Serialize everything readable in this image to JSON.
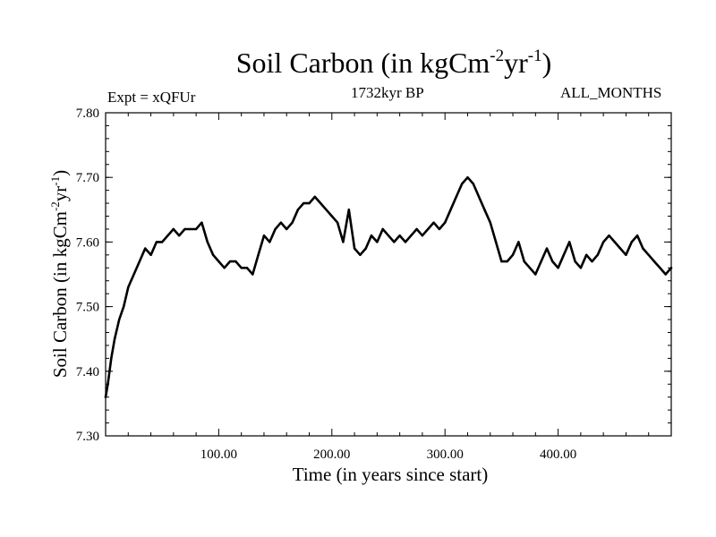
{
  "header": {
    "title_main": "Soil Carbon (in kgCm",
    "title_sup1": "-2",
    "title_mid": "yr",
    "title_sup2": "-1",
    "title_end": ")",
    "experiment": "Expt = xQFUr",
    "period": "1732kyr BP",
    "months": "ALL_MONTHS"
  },
  "chart_data": {
    "type": "line",
    "title": "Soil Carbon (in kgCm-2yr-1)",
    "xlabel": "Time (in years since start)",
    "ylabel": "Soil Carbon (in kgCm-2yr-1)",
    "xlim": [
      0,
      500
    ],
    "ylim": [
      7.3,
      7.8
    ],
    "x_ticks": [
      100,
      200,
      300,
      400
    ],
    "x_tick_labels": [
      "100.00",
      "200.00",
      "300.00",
      "400.00"
    ],
    "y_ticks": [
      7.3,
      7.4,
      7.5,
      7.6,
      7.7,
      7.8
    ],
    "y_tick_labels": [
      "7.30",
      "7.40",
      "7.50",
      "7.60",
      "7.70",
      "7.80"
    ],
    "series": [
      {
        "name": "Soil Carbon",
        "x": [
          0,
          2,
          5,
          8,
          12,
          16,
          20,
          25,
          30,
          35,
          40,
          45,
          50,
          55,
          60,
          65,
          70,
          75,
          80,
          85,
          90,
          95,
          100,
          105,
          110,
          115,
          120,
          125,
          130,
          135,
          140,
          145,
          150,
          155,
          160,
          165,
          170,
          175,
          180,
          185,
          190,
          195,
          200,
          205,
          210,
          215,
          220,
          225,
          230,
          235,
          240,
          245,
          250,
          255,
          260,
          265,
          270,
          275,
          280,
          285,
          290,
          295,
          300,
          305,
          310,
          315,
          320,
          325,
          330,
          335,
          340,
          345,
          350,
          355,
          360,
          365,
          370,
          375,
          380,
          385,
          390,
          395,
          400,
          405,
          410,
          415,
          420,
          425,
          430,
          435,
          440,
          445,
          450,
          455,
          460,
          465,
          470,
          475,
          480,
          485,
          490,
          495,
          500
        ],
        "values": [
          7.36,
          7.38,
          7.42,
          7.45,
          7.48,
          7.5,
          7.53,
          7.55,
          7.57,
          7.59,
          7.58,
          7.6,
          7.6,
          7.61,
          7.62,
          7.61,
          7.62,
          7.62,
          7.62,
          7.63,
          7.6,
          7.58,
          7.57,
          7.56,
          7.57,
          7.57,
          7.56,
          7.56,
          7.55,
          7.58,
          7.61,
          7.6,
          7.62,
          7.63,
          7.62,
          7.63,
          7.65,
          7.66,
          7.66,
          7.67,
          7.66,
          7.65,
          7.64,
          7.63,
          7.6,
          7.65,
          7.59,
          7.58,
          7.59,
          7.61,
          7.6,
          7.62,
          7.61,
          7.6,
          7.61,
          7.6,
          7.61,
          7.62,
          7.61,
          7.62,
          7.63,
          7.62,
          7.63,
          7.65,
          7.67,
          7.69,
          7.7,
          7.69,
          7.67,
          7.65,
          7.63,
          7.6,
          7.57,
          7.57,
          7.58,
          7.6,
          7.57,
          7.56,
          7.55,
          7.57,
          7.59,
          7.57,
          7.56,
          7.58,
          7.6,
          7.57,
          7.56,
          7.58,
          7.57,
          7.58,
          7.6,
          7.61,
          7.6,
          7.59,
          7.58,
          7.6,
          7.61,
          7.59,
          7.58,
          7.57,
          7.56,
          7.55,
          7.56
        ]
      }
    ],
    "line_color": "#000000"
  }
}
